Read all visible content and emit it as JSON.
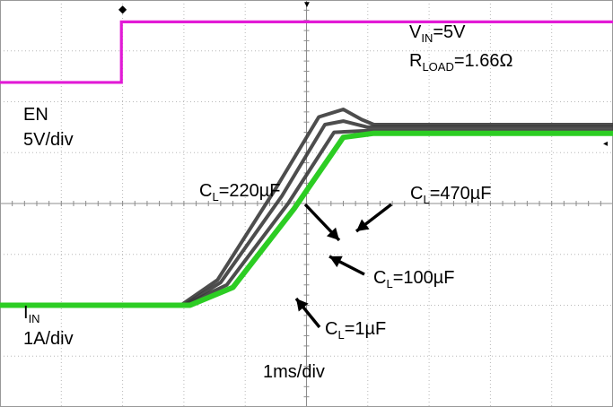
{
  "chart_data": {
    "type": "line",
    "title": "",
    "x_scale_label": "1ms/div",
    "conditions": {
      "vin_main": "V",
      "vin_sub": "IN",
      "vin_value": "=5V",
      "rload_main": "R",
      "rload_sub": "LOAD",
      "rload_value": "=1.66Ω"
    },
    "grid": {
      "divisions_x": 10,
      "divisions_y": 8,
      "style": "dotted"
    },
    "x_ms": {
      "min": 0,
      "max": 10
    },
    "en_channel": {
      "name_line1": "EN",
      "name_line2": "5V/div",
      "color": "#e21ad6",
      "low_div": 2.38,
      "high_div": 3.57,
      "step_at_ms": 1.98
    },
    "iin_channel": {
      "name_main": "I",
      "name_sub": "IN",
      "name_line2": "1A/div",
      "baseline_div": -2.0,
      "steady_div": 1.38
    },
    "series": [
      {
        "name": "CL=1µF",
        "color": "#2ccd23",
        "x": [
          0,
          3.1,
          3.8,
          4.8,
          5.6,
          6.1,
          10
        ],
        "y": [
          -2.0,
          -2.0,
          -1.65,
          -0.1,
          1.3,
          1.38,
          1.38
        ]
      },
      {
        "name": "CL=100µF",
        "color": "#3a3a3a",
        "x": [
          0,
          3.0,
          3.7,
          4.7,
          5.45,
          6.0,
          10
        ],
        "y": [
          -2.0,
          -2.0,
          -1.6,
          0.0,
          1.4,
          1.43,
          1.43
        ]
      },
      {
        "name": "CL=220µF",
        "color": "#3a3a3a",
        "x": [
          0,
          3.0,
          3.6,
          4.6,
          5.3,
          5.6,
          6.0,
          10
        ],
        "y": [
          -2.0,
          -2.0,
          -1.55,
          0.15,
          1.55,
          1.62,
          1.5,
          1.5
        ]
      },
      {
        "name": "CL=470µF",
        "color": "#3a3a3a",
        "x": [
          0,
          2.95,
          3.55,
          4.5,
          5.2,
          5.6,
          5.9,
          6.1,
          10
        ],
        "y": [
          -2.0,
          -2.0,
          -1.5,
          0.3,
          1.7,
          1.85,
          1.65,
          1.55,
          1.55
        ]
      }
    ],
    "annotations": [
      {
        "main": "C",
        "sub": "L",
        "value": "=220µF"
      },
      {
        "main": "C",
        "sub": "L",
        "value": "=470µF"
      },
      {
        "main": "C",
        "sub": "L",
        "value": "=100µF"
      },
      {
        "main": "C",
        "sub": "L",
        "value": "=1µF"
      }
    ]
  }
}
